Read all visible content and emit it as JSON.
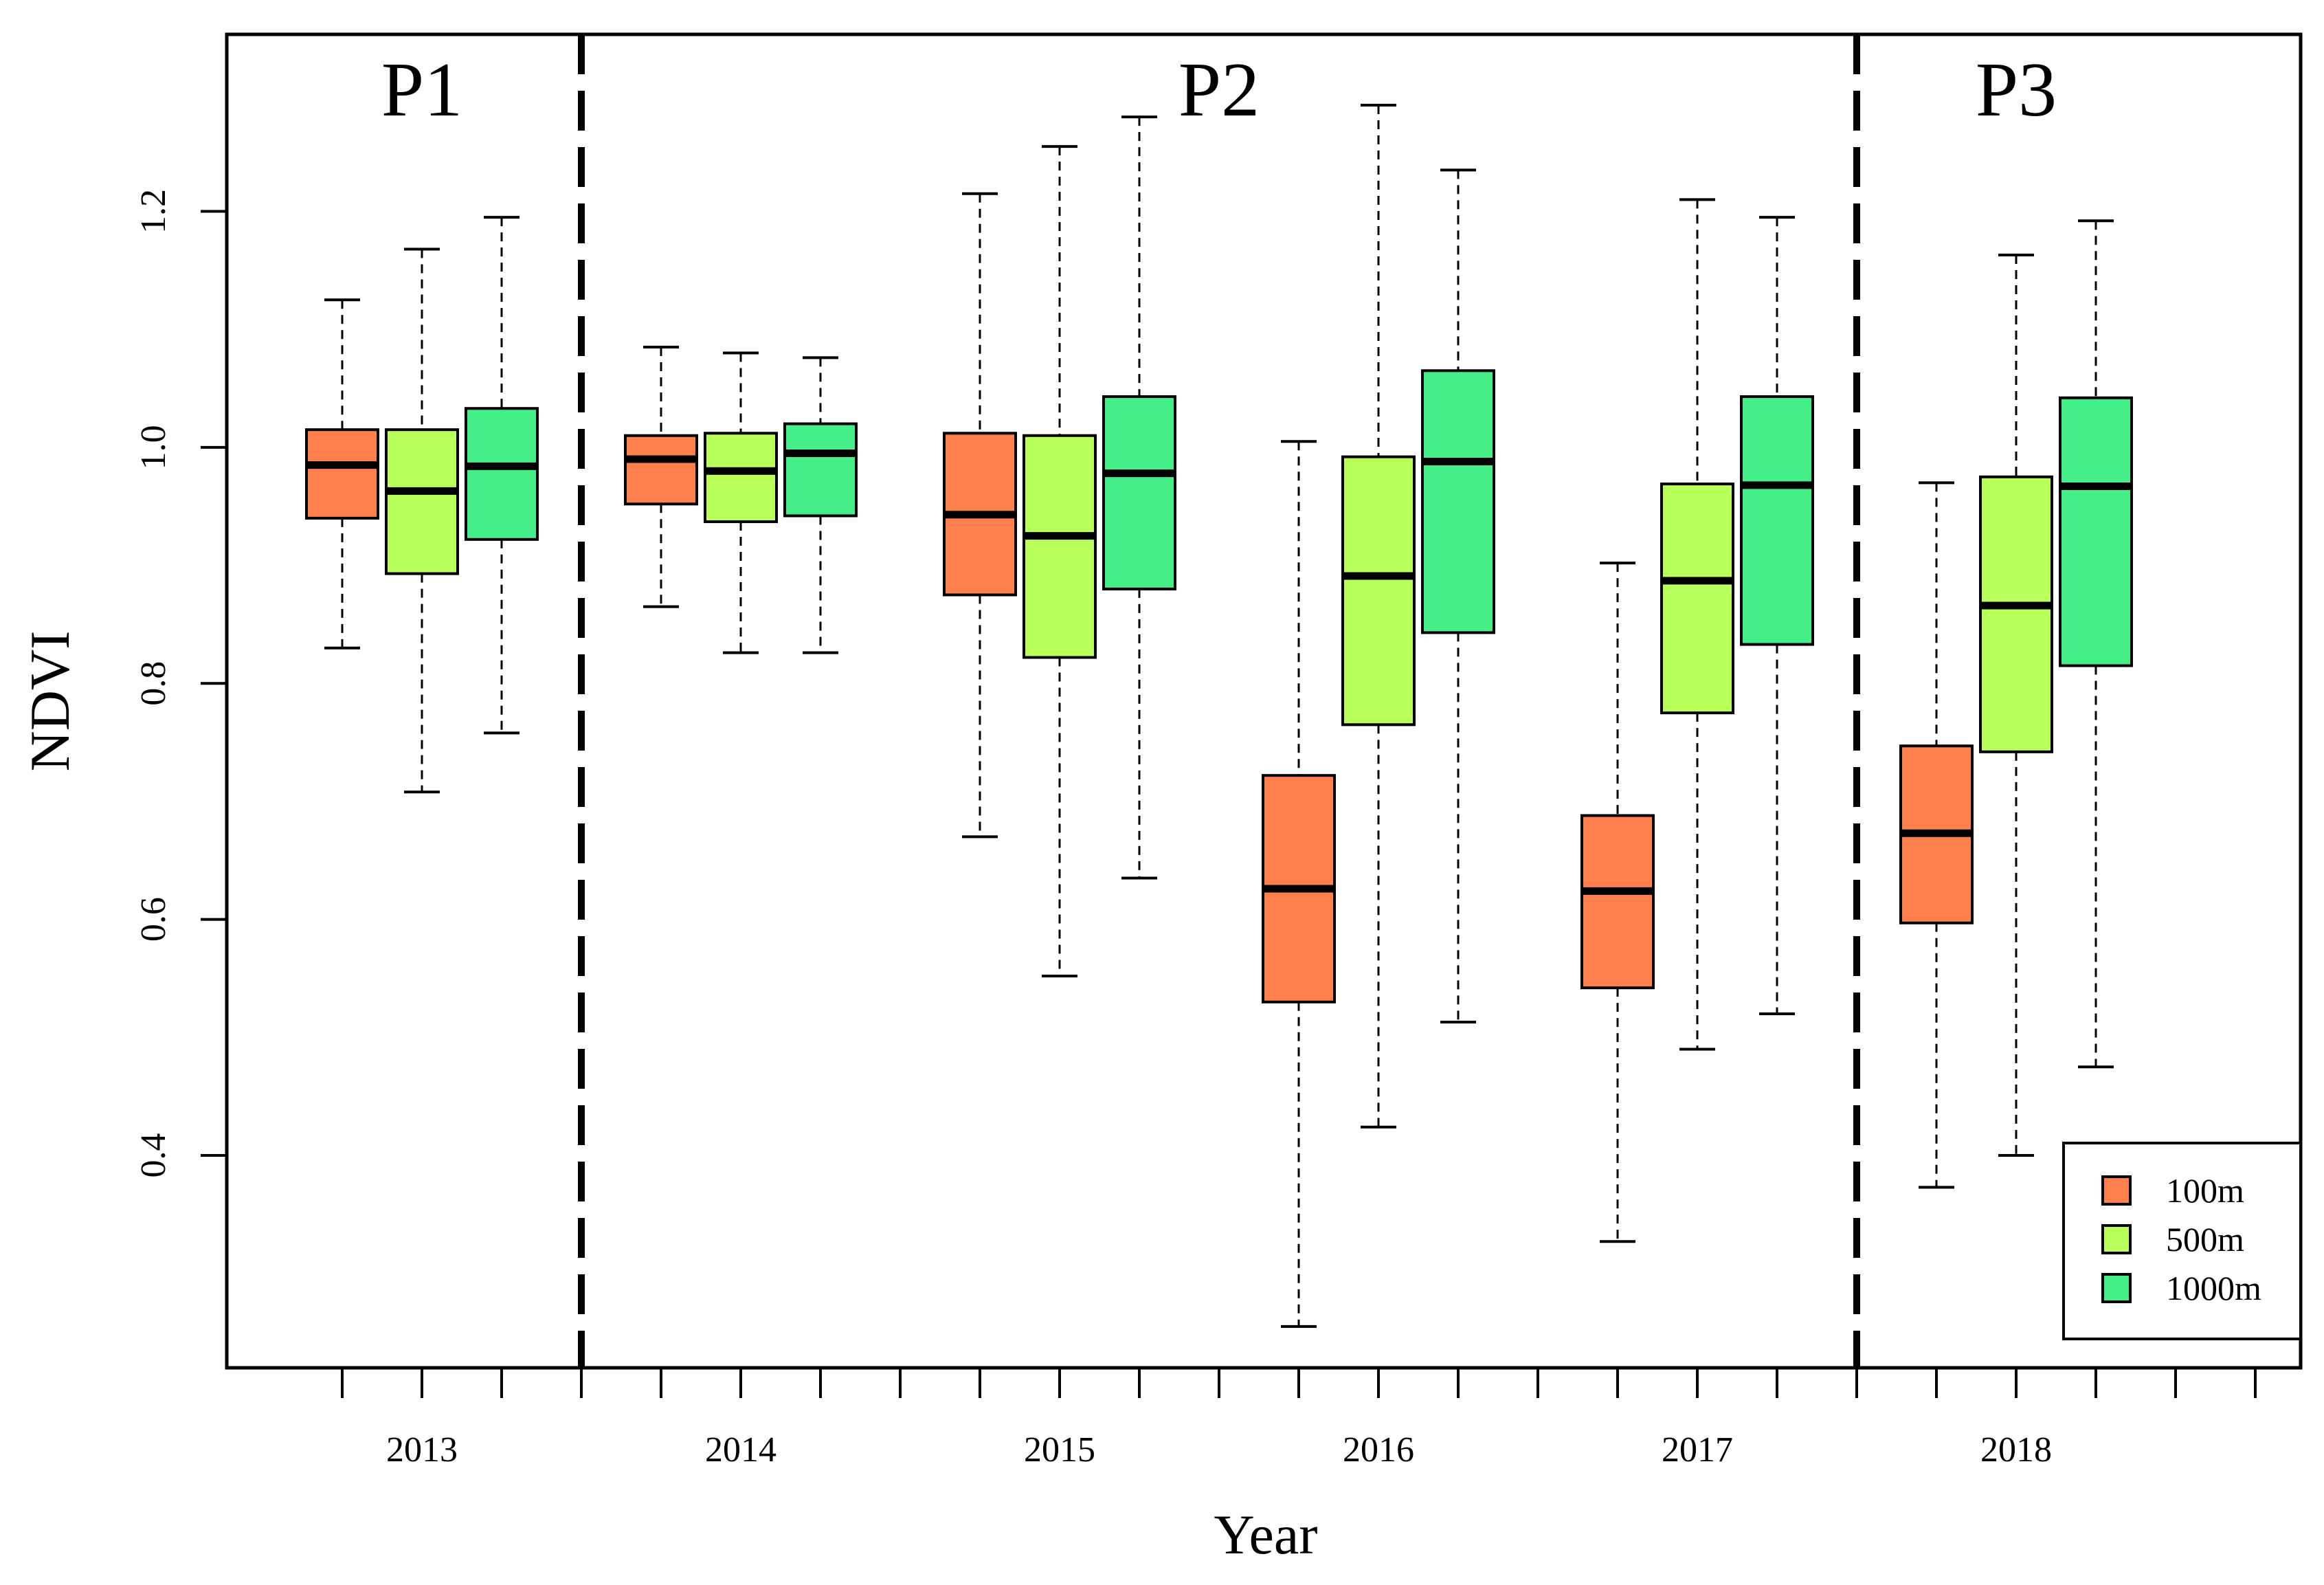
{
  "chart_data": {
    "type": "boxplot",
    "title": "",
    "xlabel": "Year",
    "ylabel": "NDVI",
    "ylim": [
      0.22,
      1.35
    ],
    "yticks": [
      "0.4",
      "0.6",
      "0.8",
      "1.0",
      "1.2"
    ],
    "categories": [
      "2013",
      "2014",
      "2015",
      "2016",
      "2017",
      "2018"
    ],
    "period_labels": [
      "P1",
      "P2",
      "P3"
    ],
    "period_dividers_after_category_index": [
      0,
      4
    ],
    "legend": {
      "placement": "bottom-right",
      "entries": [
        "100m",
        "500m",
        "1000m"
      ]
    },
    "series": [
      {
        "name": "100m",
        "color": "#FF7F4D",
        "boxes": [
          {
            "min": 0.83,
            "q1": 0.94,
            "median": 0.985,
            "q3": 1.015,
            "max": 1.125
          },
          {
            "min": 0.865,
            "q1": 0.952,
            "median": 0.99,
            "q3": 1.01,
            "max": 1.085
          },
          {
            "min": 0.67,
            "q1": 0.875,
            "median": 0.943,
            "q3": 1.012,
            "max": 1.215
          },
          {
            "min": 0.255,
            "q1": 0.53,
            "median": 0.626,
            "q3": 0.722,
            "max": 1.005
          },
          {
            "min": 0.327,
            "q1": 0.542,
            "median": 0.624,
            "q3": 0.688,
            "max": 0.902
          },
          {
            "min": 0.373,
            "q1": 0.597,
            "median": 0.673,
            "q3": 0.747,
            "max": 0.97
          }
        ]
      },
      {
        "name": "500m",
        "color": "#B8FF5A",
        "boxes": [
          {
            "min": 0.708,
            "q1": 0.893,
            "median": 0.963,
            "q3": 1.015,
            "max": 1.168
          },
          {
            "min": 0.826,
            "q1": 0.937,
            "median": 0.98,
            "q3": 1.012,
            "max": 1.08
          },
          {
            "min": 0.552,
            "q1": 0.822,
            "median": 0.925,
            "q3": 1.01,
            "max": 1.255
          },
          {
            "min": 0.424,
            "q1": 0.765,
            "median": 0.891,
            "q3": 0.992,
            "max": 1.29
          },
          {
            "min": 0.49,
            "q1": 0.775,
            "median": 0.887,
            "q3": 0.969,
            "max": 1.21
          },
          {
            "min": 0.4,
            "q1": 0.742,
            "median": 0.866,
            "q3": 0.975,
            "max": 1.163
          }
        ]
      },
      {
        "name": "1000m",
        "color": "#44EE88",
        "boxes": [
          {
            "min": 0.758,
            "q1": 0.922,
            "median": 0.984,
            "q3": 1.033,
            "max": 1.195
          },
          {
            "min": 0.826,
            "q1": 0.942,
            "median": 0.995,
            "q3": 1.02,
            "max": 1.076
          },
          {
            "min": 0.635,
            "q1": 0.88,
            "median": 0.978,
            "q3": 1.043,
            "max": 1.28
          },
          {
            "min": 0.513,
            "q1": 0.843,
            "median": 0.988,
            "q3": 1.065,
            "max": 1.235
          },
          {
            "min": 0.52,
            "q1": 0.833,
            "median": 0.968,
            "q3": 1.043,
            "max": 1.195
          },
          {
            "min": 0.475,
            "q1": 0.815,
            "median": 0.967,
            "q3": 1.042,
            "max": 1.192
          }
        ]
      }
    ]
  }
}
